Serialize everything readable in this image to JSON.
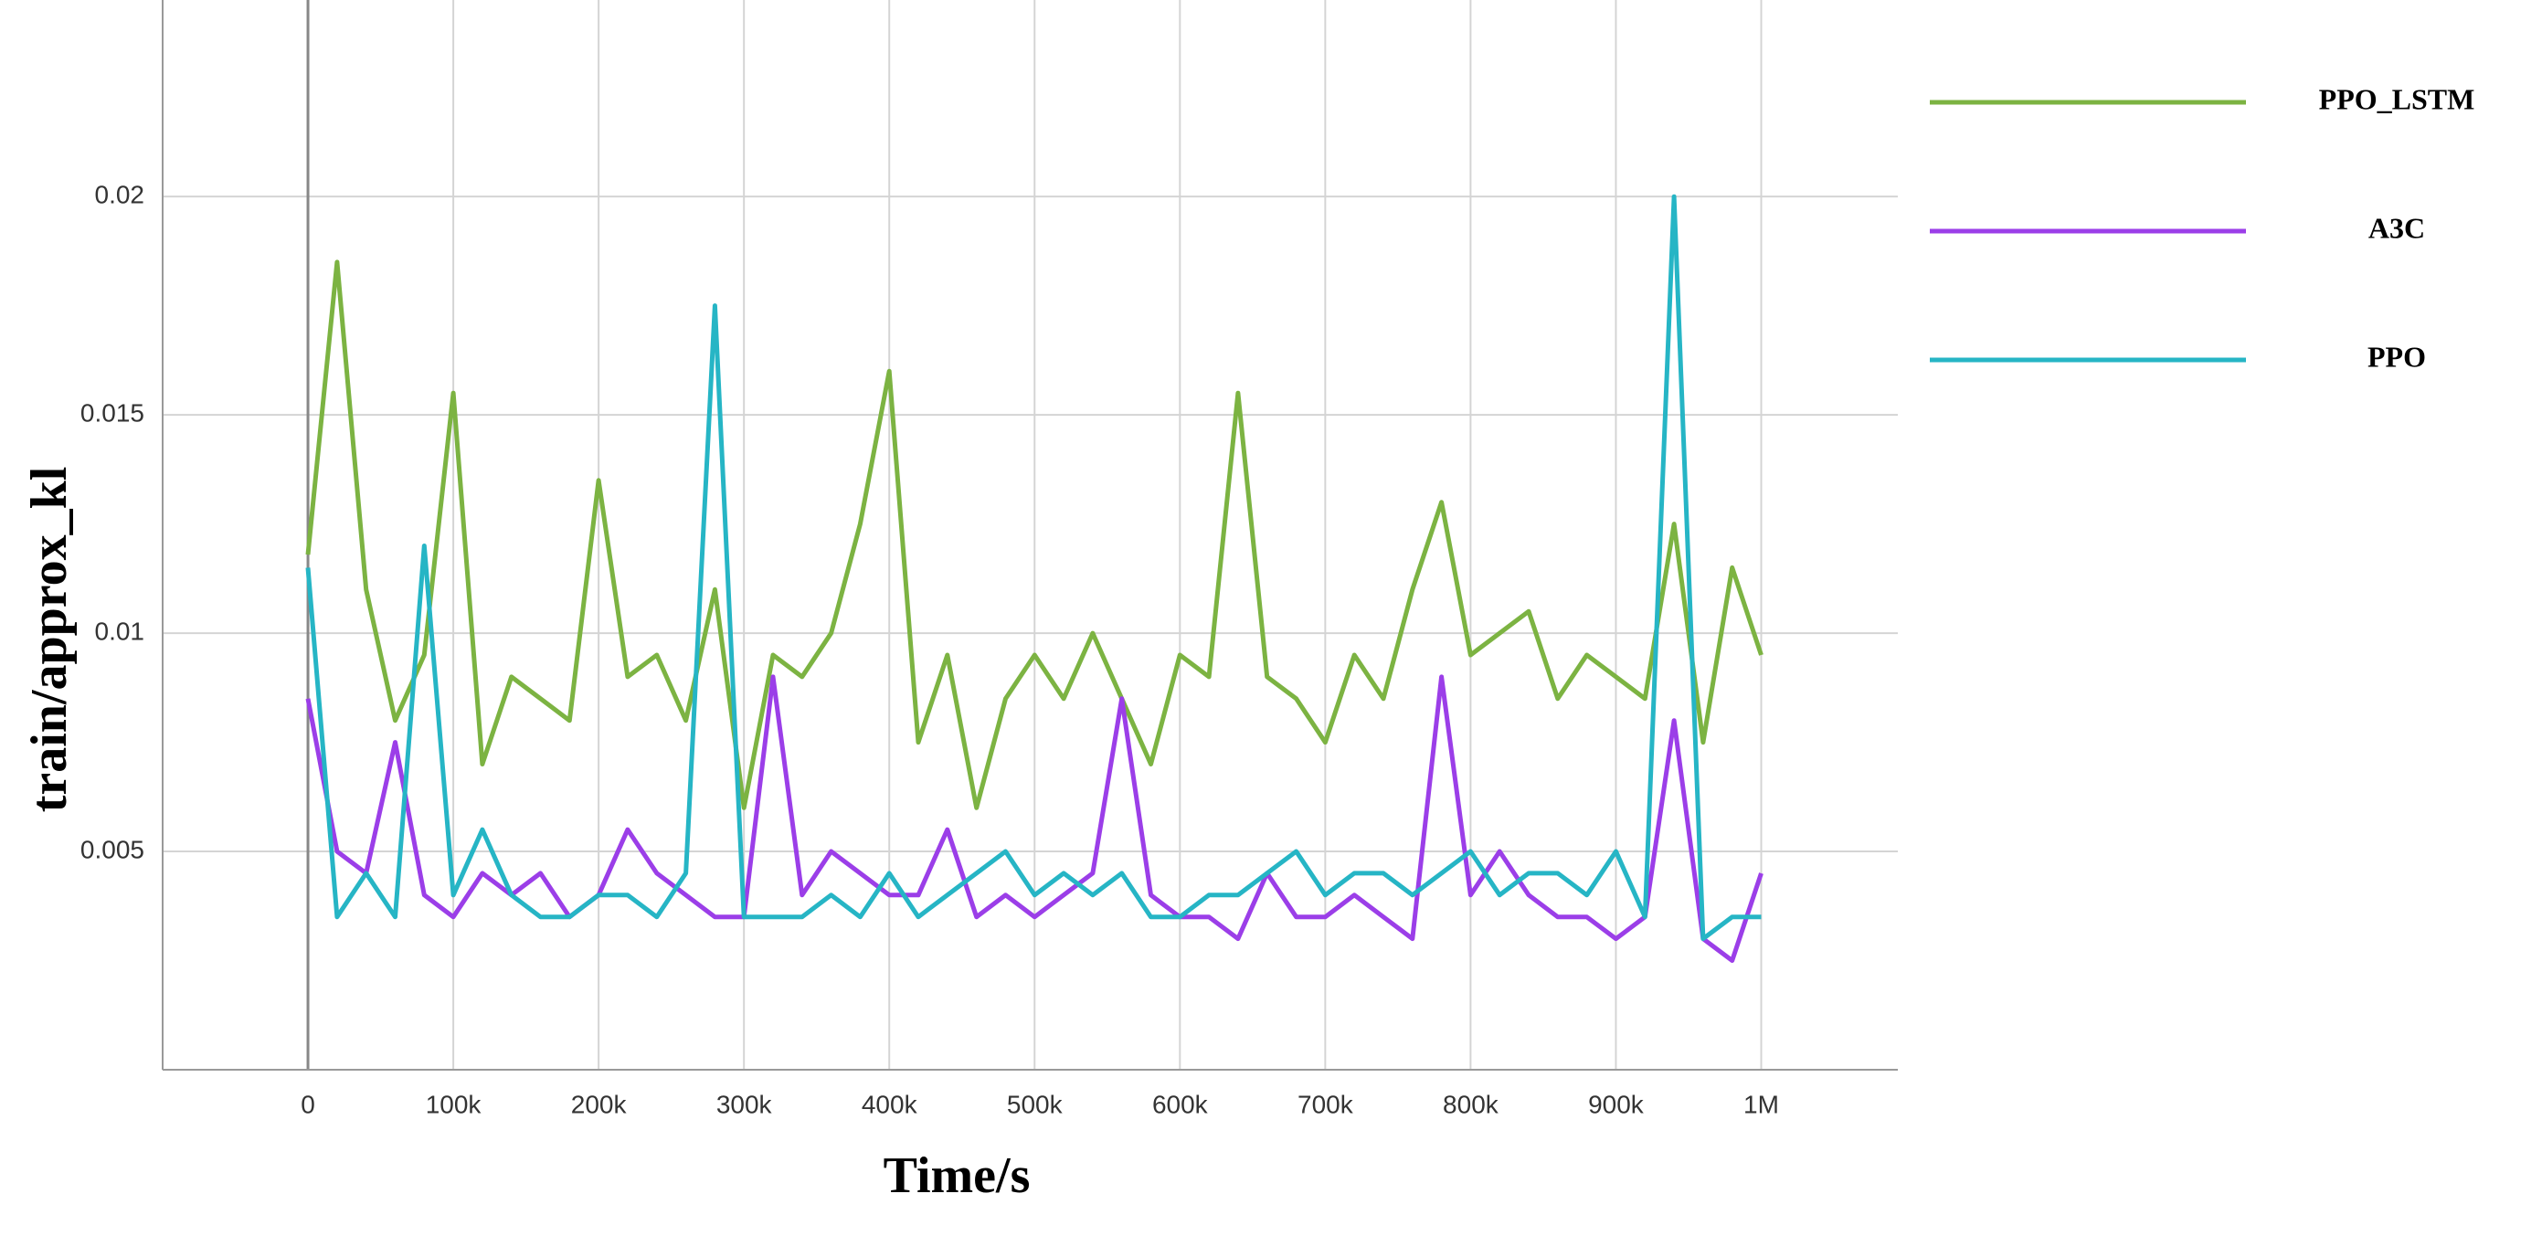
{
  "chart_data": {
    "type": "line",
    "xlabel": "Time/s",
    "ylabel": "train/approx_kl",
    "x": [
      0,
      20000,
      40000,
      60000,
      80000,
      100000,
      120000,
      140000,
      160000,
      180000,
      200000,
      220000,
      240000,
      260000,
      280000,
      300000,
      320000,
      340000,
      360000,
      380000,
      400000,
      420000,
      440000,
      460000,
      480000,
      500000,
      520000,
      540000,
      560000,
      580000,
      600000,
      620000,
      640000,
      660000,
      680000,
      700000,
      720000,
      740000,
      760000,
      780000,
      800000,
      820000,
      840000,
      860000,
      880000,
      900000,
      920000,
      940000,
      960000,
      980000,
      1000000
    ],
    "series": [
      {
        "name": "PPO_LSTM",
        "color": "#7cb342",
        "values": [
          0.0118,
          0.0185,
          0.011,
          0.008,
          0.0095,
          0.0155,
          0.007,
          0.009,
          0.0085,
          0.008,
          0.0135,
          0.009,
          0.0095,
          0.008,
          0.011,
          0.006,
          0.0095,
          0.009,
          0.01,
          0.0125,
          0.016,
          0.0075,
          0.0095,
          0.006,
          0.0085,
          0.0095,
          0.0085,
          0.01,
          0.0085,
          0.007,
          0.0095,
          0.009,
          0.0155,
          0.009,
          0.0085,
          0.0075,
          0.0095,
          0.0085,
          0.011,
          0.013,
          0.0095,
          0.01,
          0.0105,
          0.0085,
          0.0095,
          0.009,
          0.0085,
          0.0125,
          0.0075,
          0.0115,
          0.0095
        ]
      },
      {
        "name": "A3C",
        "color": "#9b3ee8",
        "values": [
          0.0085,
          0.005,
          0.0045,
          0.0075,
          0.004,
          0.0035,
          0.0045,
          0.004,
          0.0045,
          0.0035,
          0.004,
          0.0055,
          0.0045,
          0.004,
          0.0035,
          0.0035,
          0.009,
          0.004,
          0.005,
          0.0045,
          0.004,
          0.004,
          0.0055,
          0.0035,
          0.004,
          0.0035,
          0.004,
          0.0045,
          0.0085,
          0.004,
          0.0035,
          0.0035,
          0.003,
          0.0045,
          0.0035,
          0.0035,
          0.004,
          0.0035,
          0.003,
          0.009,
          0.004,
          0.005,
          0.004,
          0.0035,
          0.0035,
          0.003,
          0.0035,
          0.008,
          0.003,
          0.0025,
          0.0045
        ]
      },
      {
        "name": "PPO",
        "color": "#26b5c5",
        "values": [
          0.0115,
          0.0035,
          0.0045,
          0.0035,
          0.012,
          0.004,
          0.0055,
          0.004,
          0.0035,
          0.0035,
          0.004,
          0.004,
          0.0035,
          0.0045,
          0.0175,
          0.0035,
          0.0035,
          0.0035,
          0.004,
          0.0035,
          0.0045,
          0.0035,
          0.004,
          0.0045,
          0.005,
          0.004,
          0.0045,
          0.004,
          0.0045,
          0.0035,
          0.0035,
          0.004,
          0.004,
          0.0045,
          0.005,
          0.004,
          0.0045,
          0.0045,
          0.004,
          0.0045,
          0.005,
          0.004,
          0.0045,
          0.0045,
          0.004,
          0.005,
          0.0035,
          0.02,
          0.003,
          0.0035,
          0.0035
        ]
      }
    ],
    "xlim": [
      -100000,
      1094000
    ],
    "xticks": [
      0,
      {
        "value": 100000,
        "label": "100k"
      },
      {
        "value": 200000,
        "label": "200k"
      },
      {
        "value": 300000,
        "label": "300k"
      },
      {
        "value": 400000,
        "label": "400k"
      },
      {
        "value": 500000,
        "label": "500k"
      },
      {
        "value": 600000,
        "label": "600k"
      },
      {
        "value": 700000,
        "label": "700k"
      },
      {
        "value": 800000,
        "label": "800k"
      },
      {
        "value": 900000,
        "label": "900k"
      },
      {
        "value": 1000000,
        "label": "1M"
      }
    ],
    "ylim": [
      0,
      0.024
    ],
    "yticks": [
      0.005,
      0.01,
      0.015,
      0.02
    ],
    "grid": true,
    "legend": "right"
  }
}
